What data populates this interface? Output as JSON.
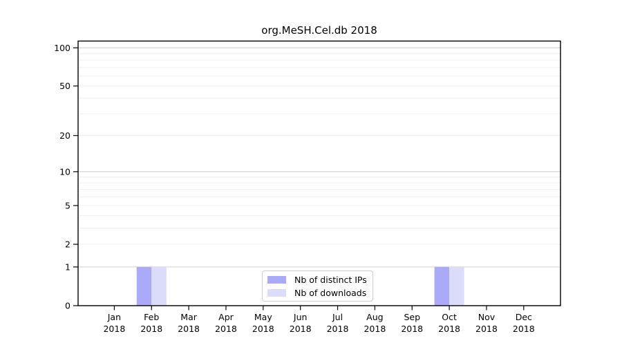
{
  "chart_data": {
    "type": "bar",
    "title": "org.MeSH.Cel.db 2018",
    "year_label": "2018",
    "categories": [
      "Jan",
      "Feb",
      "Mar",
      "Apr",
      "May",
      "Jun",
      "Jul",
      "Aug",
      "Sep",
      "Oct",
      "Nov",
      "Dec"
    ],
    "series": [
      {
        "name": "Nb of distinct IPs",
        "color": "#aaaaf8",
        "values": [
          0,
          1,
          0,
          0,
          0,
          0,
          0,
          0,
          0,
          1,
          0,
          0
        ]
      },
      {
        "name": "Nb of downloads",
        "color": "#dadcf9",
        "values": [
          0,
          1,
          0,
          0,
          0,
          0,
          0,
          0,
          0,
          1,
          0,
          0
        ]
      }
    ],
    "xlabel": "",
    "ylabel": "",
    "y_ticks": [
      0,
      1,
      2,
      5,
      10,
      20,
      50,
      100
    ],
    "ylim": [
      0,
      113
    ],
    "yscale": "log1p",
    "grid": "horizontal",
    "gridline_values_minor": [
      2,
      3,
      4,
      5,
      6,
      7,
      8,
      9,
      20,
      30,
      40,
      50,
      60,
      70,
      80,
      90
    ],
    "gridline_values_major": [
      1,
      10,
      100
    ],
    "legend_position": "lower-center-inside"
  },
  "colors": {
    "axis": "#000000",
    "tick_label": "#000000",
    "grid_major": "#d0d0d0",
    "grid_minor": "#efefef",
    "background": "#ffffff",
    "legend_border": "#cccccc"
  }
}
